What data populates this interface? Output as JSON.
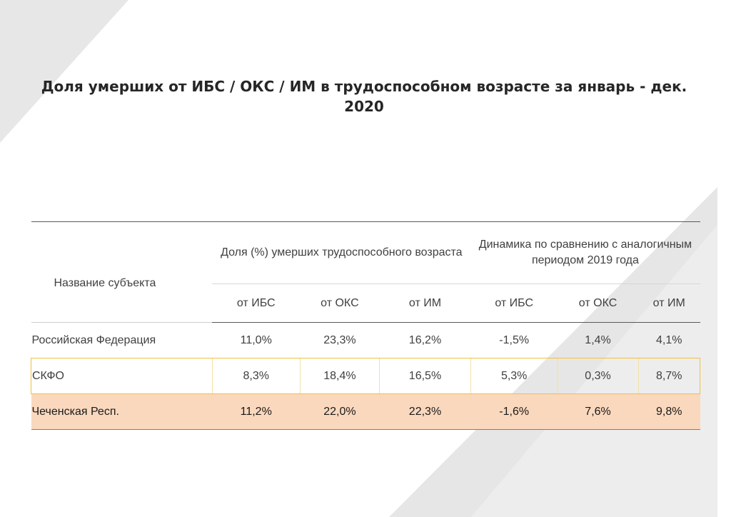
{
  "title": "Доля умерших от ИБС / ОКС / ИМ в трудоспособном возрасте за январь - дек. 2020",
  "table": {
    "name_header": "Название субъекта",
    "group1_header": "Доля (%) умерших трудоспособного возраста",
    "group2_header": "Динамика по сравнению с аналогичным периодом 2019 года",
    "subheaders": [
      "от ИБС",
      "от ОКС",
      "от ИМ",
      "от ИБС",
      "от ОКС",
      "от ИМ"
    ],
    "rows": [
      {
        "name": "Российская Федерация",
        "values": [
          "11,0%",
          "23,3%",
          "16,2%",
          "-1,5%",
          "1,4%",
          "4,1%"
        ]
      },
      {
        "name": "СКФО",
        "values": [
          "8,3%",
          "18,4%",
          "16,5%",
          "5,3%",
          "0,3%",
          "8,7%"
        ]
      },
      {
        "name": "Чеченская Респ.",
        "values": [
          "11,2%",
          "22,0%",
          "22,3%",
          "-1,6%",
          "7,6%",
          "9,8%"
        ]
      }
    ]
  },
  "colors": {
    "highlight_row": "#fad8bd",
    "outline_row": "#f0c040",
    "background_shape": "#e6e6e6"
  }
}
